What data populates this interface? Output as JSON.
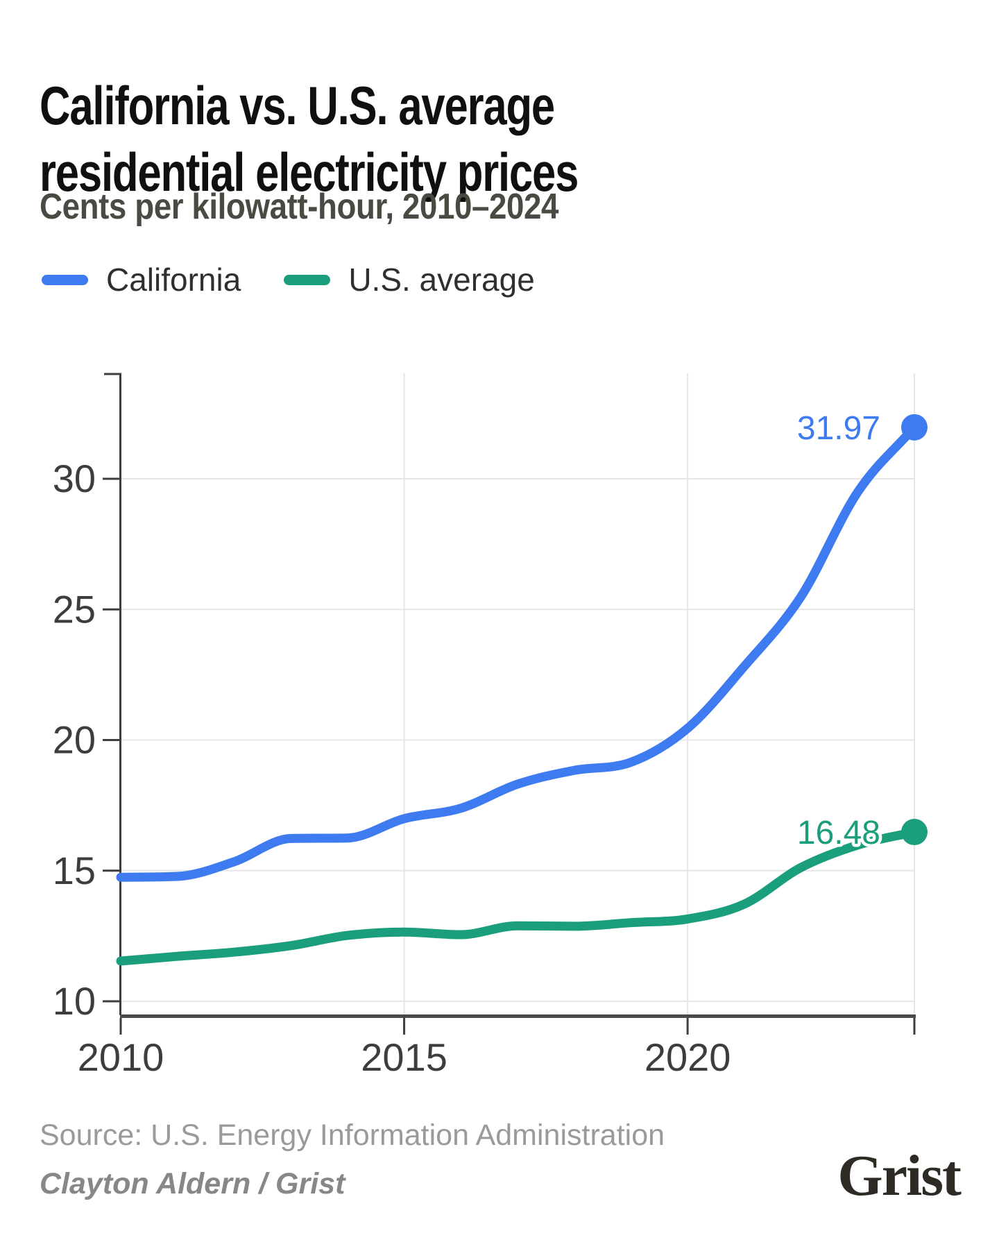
{
  "header": {
    "title_lines": [
      "California vs. U.S. average",
      "residential electricity prices"
    ],
    "subtitle": "Cents per kilowatt-hour, 2010–2024"
  },
  "legend": {
    "items": [
      {
        "label": "California",
        "color": "#3E7BF0"
      },
      {
        "label": "U.S. average",
        "color": "#1A9E7B"
      }
    ]
  },
  "chart_data": {
    "type": "line",
    "title": "California vs. U.S. average residential electricity prices",
    "subtitle": "Cents per kilowatt-hour, 2010–2024",
    "xlabel": "",
    "ylabel": "Cents per kilowatt-hour",
    "x": [
      2010,
      2011,
      2012,
      2013,
      2014,
      2015,
      2016,
      2017,
      2018,
      2019,
      2020,
      2021,
      2022,
      2023,
      2024
    ],
    "series": [
      {
        "name": "California",
        "color": "#3E7BF0",
        "values": [
          14.75,
          14.78,
          15.34,
          16.23,
          16.25,
          16.99,
          17.39,
          18.31,
          18.84,
          19.15,
          20.45,
          22.82,
          25.49,
          29.49,
          31.97
        ],
        "end_label": "31.97"
      },
      {
        "name": "U.S. average",
        "color": "#1A9E7B",
        "values": [
          11.54,
          11.72,
          11.88,
          12.13,
          12.52,
          12.65,
          12.55,
          12.89,
          12.87,
          13.01,
          13.15,
          13.72,
          15.12,
          15.98,
          16.48
        ],
        "end_label": "16.48"
      }
    ],
    "xticks": [
      "2010",
      "2015",
      "2020"
    ],
    "xtick_years": [
      2010,
      2015,
      2020
    ],
    "yticks": [
      10,
      15,
      20,
      25,
      30
    ],
    "xgrid_years": [
      2015,
      2020,
      2024
    ],
    "xlim": [
      2010,
      2024
    ],
    "ylim": [
      9.5,
      34
    ],
    "grid": true,
    "legend_position": "top-left"
  },
  "footer": {
    "source": "Source: U.S. Energy Information Administration",
    "byline": "Clayton Aldern / Grist",
    "logo": "Grist"
  },
  "colors": {
    "grid": "#e6e6e6",
    "axis": "#3f3f3f",
    "axis_bottom": "#4a4a4a",
    "tick_label": "#3d3d3d"
  }
}
